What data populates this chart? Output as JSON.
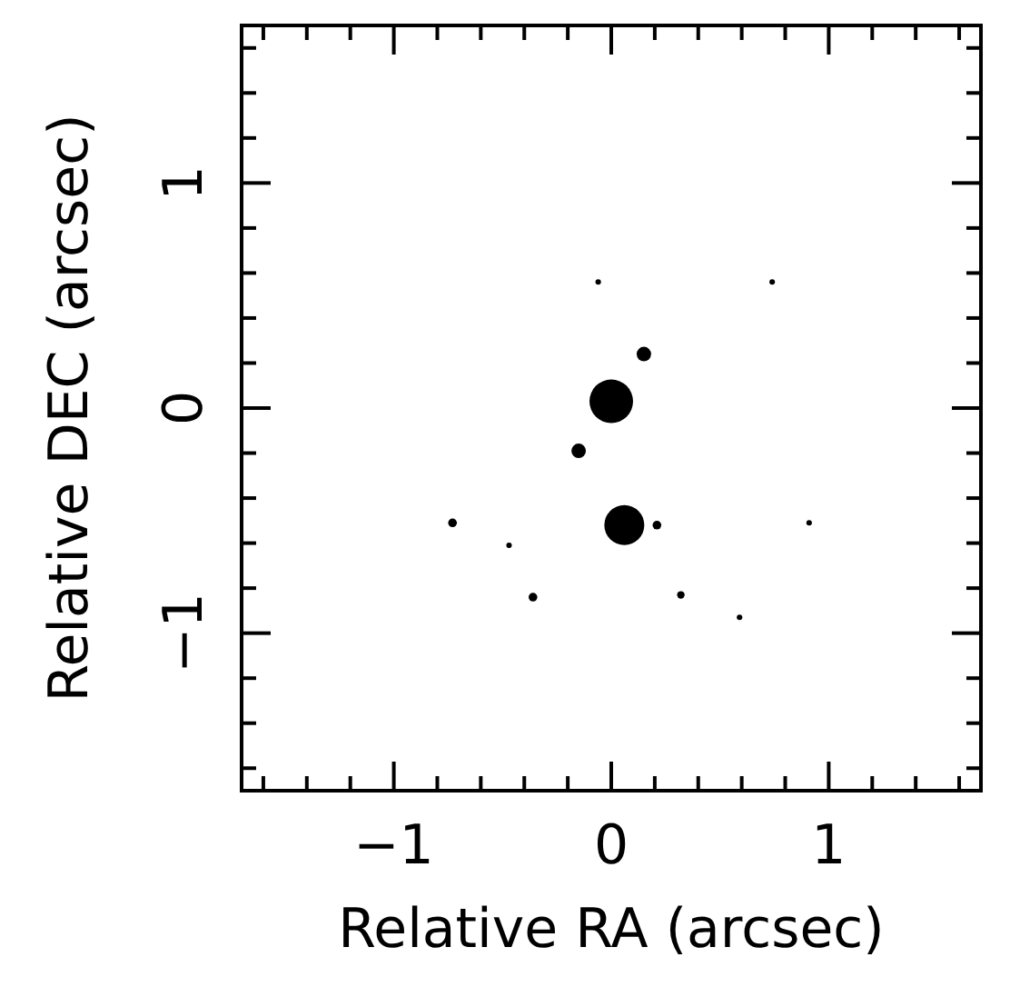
{
  "chart_data": {
    "type": "bubble",
    "xlabel": "Relative RA (arcsec)",
    "ylabel": "Relative DEC (arcsec)",
    "xlim": [
      -1.7,
      1.7
    ],
    "ylim": [
      -1.7,
      1.7
    ],
    "xticks": [
      {
        "value": -1.6,
        "label": null
      },
      {
        "value": -1.4,
        "label": null
      },
      {
        "value": -1.2,
        "label": null
      },
      {
        "value": -1,
        "label": "−1"
      },
      {
        "value": -0.8,
        "label": null
      },
      {
        "value": -0.6,
        "label": null
      },
      {
        "value": -0.4,
        "label": null
      },
      {
        "value": -0.2,
        "label": null
      },
      0,
      {
        "value": 0.2,
        "label": null
      },
      {
        "value": 0.4,
        "label": null
      },
      {
        "value": 0.6,
        "label": null
      },
      {
        "value": 0.8,
        "label": null
      },
      1,
      {
        "value": 1.2,
        "label": null
      },
      {
        "value": 1.4,
        "label": null
      },
      {
        "value": 1.6,
        "label": null
      }
    ],
    "yticks": [
      {
        "value": -1.6,
        "label": null
      },
      {
        "value": -1.4,
        "label": null
      },
      {
        "value": -1.2,
        "label": null
      },
      {
        "value": -1,
        "label": "−1"
      },
      {
        "value": -0.8,
        "label": null
      },
      {
        "value": -0.6,
        "label": null
      },
      {
        "value": -0.4,
        "label": null
      },
      {
        "value": -0.2,
        "label": null
      },
      0,
      {
        "value": 0.2,
        "label": null
      },
      {
        "value": 0.4,
        "label": null
      },
      {
        "value": 0.6,
        "label": null
      },
      {
        "value": 0.8,
        "label": null
      },
      1,
      {
        "value": 1.2,
        "label": null
      },
      {
        "value": 1.4,
        "label": null
      },
      {
        "value": 1.6,
        "label": null
      }
    ],
    "series": [
      {
        "color": "#000000",
        "x": [
          -0.06,
          0.74,
          0.15,
          0.0,
          -0.15,
          0.06,
          -0.73,
          0.21,
          0.91,
          -0.47,
          -0.36,
          0.32,
          0.59
        ],
        "values": [
          0.56,
          0.56,
          0.24,
          0.03,
          -0.19,
          -0.52,
          -0.51,
          -0.52,
          -0.51,
          -0.61,
          -0.84,
          -0.83,
          -0.93
        ],
        "sizes": [
          0.016,
          0.016,
          0.11,
          1,
          0.11,
          0.84,
          0.04,
          0.04,
          0.016,
          0.016,
          0.04,
          0.03,
          0.016
        ]
      }
    ]
  }
}
